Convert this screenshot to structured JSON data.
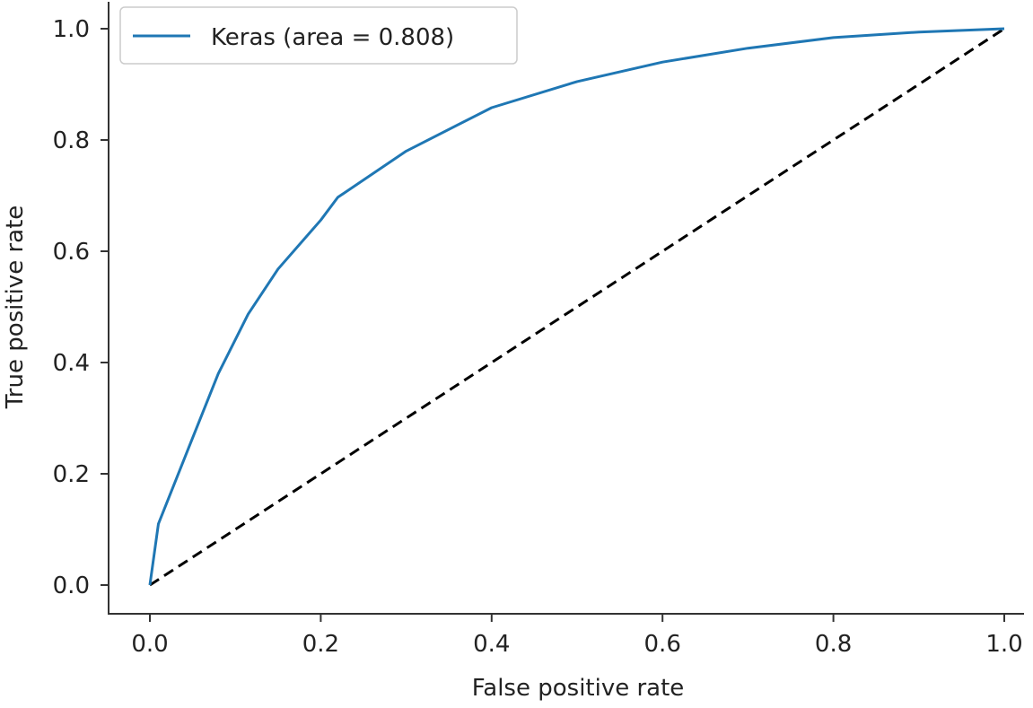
{
  "chart_data": {
    "type": "line",
    "title": "",
    "xlabel": "False positive rate",
    "ylabel": "True positive rate",
    "xlim": [
      -0.05,
      1.05
    ],
    "ylim": [
      -0.05,
      1.05
    ],
    "xticks": [
      "0.0",
      "0.2",
      "0.4",
      "0.6",
      "0.8",
      "1.0"
    ],
    "yticks": [
      "0.0",
      "0.2",
      "0.4",
      "0.6",
      "0.8",
      "1.0"
    ],
    "grid": false,
    "legend_placement": "top-left",
    "series": [
      {
        "name": "Keras (area = 0.808)",
        "color": "#1f77b4",
        "style": "solid",
        "x": [
          0,
          0.01,
          0.045,
          0.08,
          0.115,
          0.15,
          0.2,
          0.22,
          0.3,
          0.4,
          0.5,
          0.6,
          0.7,
          0.8,
          0.9,
          1.0
        ],
        "y": [
          0,
          0.11,
          0.245,
          0.38,
          0.487,
          0.568,
          0.656,
          0.697,
          0.78,
          0.858,
          0.905,
          0.94,
          0.965,
          0.984,
          0.994,
          1.0
        ]
      },
      {
        "color": "#000000",
        "style": "dashed",
        "x": [
          0,
          1
        ],
        "y": [
          0,
          1
        ]
      }
    ]
  }
}
